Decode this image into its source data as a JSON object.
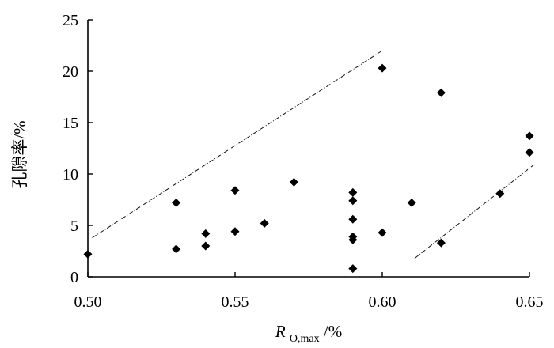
{
  "chart_data": {
    "type": "scatter",
    "title": "",
    "xlabel": {
      "main": "R",
      "subscript": "O,max",
      "suffix": "/%"
    },
    "ylabel": "孔隙率/%",
    "xlim": [
      0.5,
      0.65
    ],
    "ylim": [
      0,
      25
    ],
    "xticks": [
      "0.50",
      "0.55",
      "0.60",
      "0.65"
    ],
    "yticks": [
      "0",
      "5",
      "10",
      "15",
      "20",
      "25"
    ],
    "grid": false,
    "legend": "none",
    "marker": "diamond",
    "points": [
      {
        "x": 0.5,
        "y": 2.2
      },
      {
        "x": 0.53,
        "y": 7.2
      },
      {
        "x": 0.53,
        "y": 2.7
      },
      {
        "x": 0.54,
        "y": 4.2
      },
      {
        "x": 0.54,
        "y": 3.0
      },
      {
        "x": 0.55,
        "y": 8.4
      },
      {
        "x": 0.55,
        "y": 4.4
      },
      {
        "x": 0.56,
        "y": 5.2
      },
      {
        "x": 0.57,
        "y": 9.2
      },
      {
        "x": 0.59,
        "y": 8.2
      },
      {
        "x": 0.59,
        "y": 7.4
      },
      {
        "x": 0.59,
        "y": 5.6
      },
      {
        "x": 0.59,
        "y": 3.9
      },
      {
        "x": 0.59,
        "y": 3.6
      },
      {
        "x": 0.59,
        "y": 0.8
      },
      {
        "x": 0.6,
        "y": 20.3
      },
      {
        "x": 0.6,
        "y": 4.3
      },
      {
        "x": 0.61,
        "y": 7.2
      },
      {
        "x": 0.62,
        "y": 17.9
      },
      {
        "x": 0.62,
        "y": 3.3
      },
      {
        "x": 0.64,
        "y": 8.1
      },
      {
        "x": 0.65,
        "y": 13.7
      },
      {
        "x": 0.65,
        "y": 12.1
      }
    ],
    "bounding_lines": [
      {
        "name": "",
        "start": {
          "x": 0.5015,
          "y": 3.8
        },
        "end": {
          "x": 0.6,
          "y": 22.0
        }
      },
      {
        "name": "",
        "start": {
          "x": 0.611,
          "y": 1.8
        },
        "end": {
          "x": 0.6515,
          "y": 10.9
        }
      }
    ]
  }
}
